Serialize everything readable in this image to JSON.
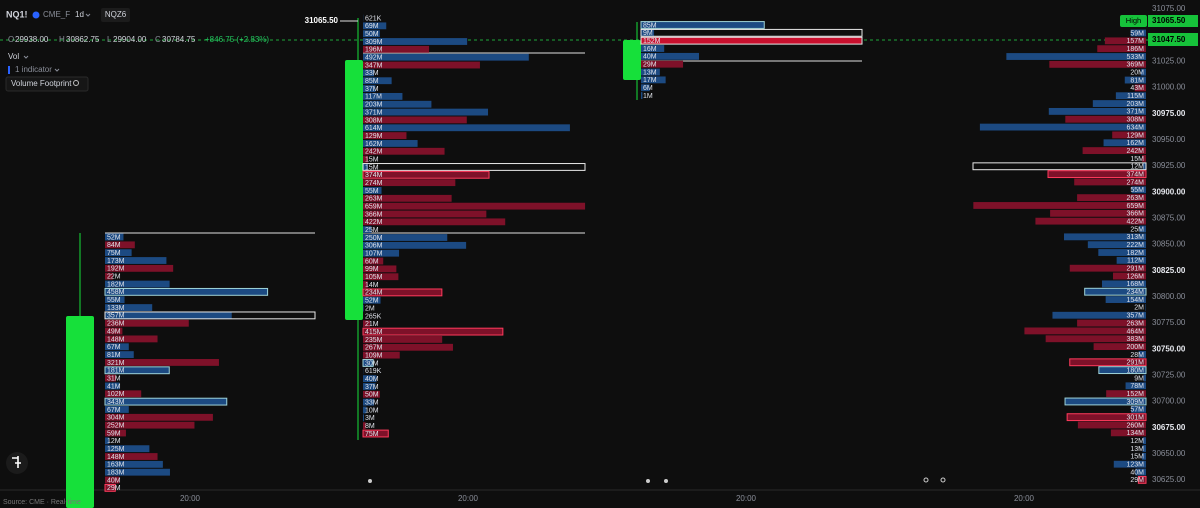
{
  "header": {
    "symbol": "NQ1!",
    "exchange": "CME_F",
    "interval": "1d",
    "contract": "NQZ6"
  },
  "ohlc": {
    "o": "O",
    "open": "29938.00",
    "h": "H",
    "high": "30862.75",
    "l": "L",
    "low": "29904.00",
    "c": "C",
    "close": "30784.75",
    "change": "+846.75 (+2.83%)"
  },
  "indicators": {
    "vol": "Vol",
    "count": "1 indicator",
    "footprint": "Volume Footprint"
  },
  "source": "Source: CME · Real-time",
  "high_marker": "31065.50",
  "time_axis": [
    "20:00",
    "20:00",
    "20:00",
    "20:00"
  ],
  "price_axis": {
    "ylim": [
      30615.5,
      31083.6
    ],
    "ticks": [
      {
        "value": 31075,
        "label": "31075.00"
      },
      {
        "value": 31025,
        "label": "31025.00"
      },
      {
        "value": 31000,
        "label": "31000.00"
      },
      {
        "value": 30975,
        "label": "30975.00",
        "strong": true
      },
      {
        "value": 30950,
        "label": "30950.00"
      },
      {
        "value": 30925,
        "label": "30925.00"
      },
      {
        "value": 30900,
        "label": "30900.00",
        "strong": true
      },
      {
        "value": 30875,
        "label": "30875.00"
      },
      {
        "value": 30850,
        "label": "30850.00"
      },
      {
        "value": 30825,
        "label": "30825.00",
        "strong": true
      },
      {
        "value": 30800,
        "label": "30800.00"
      },
      {
        "value": 30775,
        "label": "30775.00"
      },
      {
        "value": 30750,
        "label": "30750.00",
        "strong": true
      },
      {
        "value": 30725,
        "label": "30725.00"
      },
      {
        "value": 30700,
        "label": "30700.00"
      },
      {
        "value": 30675,
        "label": "30675.00",
        "strong": true
      },
      {
        "value": 30650,
        "label": "30650.00"
      },
      {
        "value": 30625,
        "label": "30625.00"
      }
    ],
    "high_tag": "High",
    "high_price": "31065.50",
    "last_price": "31047.50"
  },
  "colors": {
    "b": "#1c4a82",
    "s": "#7e1129",
    "box_b": "#9fd3d8",
    "box_s": "#ff3b5c",
    "full": "#e8e8e8",
    "hot": "#c8102e"
  },
  "footprints": [
    {
      "rows": [
        {
          "t": "52M",
          "v": 52,
          "s": "b"
        },
        {
          "t": "84M",
          "v": 84,
          "s": "s"
        },
        {
          "t": "75M",
          "v": 75,
          "s": "b"
        },
        {
          "t": "173M",
          "v": 173,
          "s": "b"
        },
        {
          "t": "192M",
          "v": 192,
          "s": "s"
        },
        {
          "t": "22M",
          "v": 22,
          "s": "s"
        },
        {
          "t": "182M",
          "v": 182,
          "s": "b"
        },
        {
          "t": "458M",
          "v": 458,
          "s": "b",
          "box": "bar"
        },
        {
          "t": "55M",
          "v": 55,
          "s": "b"
        },
        {
          "t": "133M",
          "v": 133,
          "s": "b"
        },
        {
          "t": "357M",
          "v": 357,
          "s": "b",
          "box": "full"
        },
        {
          "t": "236M",
          "v": 236,
          "s": "s"
        },
        {
          "t": "49M",
          "v": 49,
          "s": "s"
        },
        {
          "t": "148M",
          "v": 148,
          "s": "s"
        },
        {
          "t": "67M",
          "v": 67,
          "s": "b"
        },
        {
          "t": "81M",
          "v": 81,
          "s": "b"
        },
        {
          "t": "321M",
          "v": 321,
          "s": "s"
        },
        {
          "t": "181M",
          "v": 181,
          "s": "b",
          "box": "bar"
        },
        {
          "t": "31M",
          "v": 31,
          "s": "s"
        },
        {
          "t": "41M",
          "v": 41,
          "s": "b"
        },
        {
          "t": "102M",
          "v": 102,
          "s": "s"
        },
        {
          "t": "343M",
          "v": 343,
          "s": "b",
          "box": "bar"
        },
        {
          "t": "67M",
          "v": 67,
          "s": "b"
        },
        {
          "t": "304M",
          "v": 304,
          "s": "s"
        },
        {
          "t": "252M",
          "v": 252,
          "s": "s"
        },
        {
          "t": "59M",
          "v": 59,
          "s": "s"
        },
        {
          "t": "12M",
          "v": 12,
          "s": "b"
        },
        {
          "t": "125M",
          "v": 125,
          "s": "b"
        },
        {
          "t": "148M",
          "v": 148,
          "s": "s"
        },
        {
          "t": "163M",
          "v": 163,
          "s": "b"
        },
        {
          "t": "183M",
          "v": 183,
          "s": "b"
        },
        {
          "t": "40M",
          "v": 40,
          "s": "s"
        },
        {
          "t": "29M",
          "v": 29,
          "s": "s",
          "box": "bar"
        }
      ]
    },
    {
      "rows": [
        {
          "t": "621K",
          "v": 0.621,
          "s": "b"
        },
        {
          "t": "69M",
          "v": 69,
          "s": "b"
        },
        {
          "t": "50M",
          "v": 50,
          "s": "b"
        },
        {
          "t": "309M",
          "v": 309,
          "s": "b"
        },
        {
          "t": "196M",
          "v": 196,
          "s": "s"
        },
        {
          "t": "492M",
          "v": 492,
          "s": "b"
        },
        {
          "t": "347M",
          "v": 347,
          "s": "s"
        },
        {
          "t": "33M",
          "v": 33,
          "s": "b"
        },
        {
          "t": "85M",
          "v": 85,
          "s": "b"
        },
        {
          "t": "37M",
          "v": 37,
          "s": "b"
        },
        {
          "t": "117M",
          "v": 117,
          "s": "b"
        },
        {
          "t": "203M",
          "v": 203,
          "s": "b"
        },
        {
          "t": "371M",
          "v": 371,
          "s": "b"
        },
        {
          "t": "308M",
          "v": 308,
          "s": "s"
        },
        {
          "t": "614M",
          "v": 614,
          "s": "b"
        },
        {
          "t": "129M",
          "v": 129,
          "s": "s"
        },
        {
          "t": "162M",
          "v": 162,
          "s": "b"
        },
        {
          "t": "242M",
          "v": 242,
          "s": "s"
        },
        {
          "t": "15M",
          "v": 15,
          "s": "s"
        },
        {
          "t": "15M",
          "v": 15,
          "s": "b",
          "box": "full"
        },
        {
          "t": "374M",
          "v": 374,
          "s": "s",
          "box": "bar"
        },
        {
          "t": "274M",
          "v": 274,
          "s": "s"
        },
        {
          "t": "55M",
          "v": 55,
          "s": "b"
        },
        {
          "t": "263M",
          "v": 263,
          "s": "s"
        },
        {
          "t": "659M",
          "v": 659,
          "s": "s"
        },
        {
          "t": "366M",
          "v": 366,
          "s": "s"
        },
        {
          "t": "422M",
          "v": 422,
          "s": "s"
        },
        {
          "t": "25M",
          "v": 25,
          "s": "b"
        },
        {
          "t": "250M",
          "v": 250,
          "s": "b"
        },
        {
          "t": "306M",
          "v": 306,
          "s": "b"
        },
        {
          "t": "107M",
          "v": 107,
          "s": "b"
        },
        {
          "t": "60M",
          "v": 60,
          "s": "s"
        },
        {
          "t": "99M",
          "v": 99,
          "s": "s"
        },
        {
          "t": "105M",
          "v": 105,
          "s": "s"
        },
        {
          "t": "14M",
          "v": 14,
          "s": "s"
        },
        {
          "t": "234M",
          "v": 234,
          "s": "s",
          "box": "bar"
        },
        {
          "t": "52M",
          "v": 52,
          "s": "b"
        },
        {
          "t": "2M",
          "v": 2,
          "s": "b"
        },
        {
          "t": "265K",
          "v": 0.265,
          "s": "s"
        },
        {
          "t": "21M",
          "v": 21,
          "s": "s"
        },
        {
          "t": "415M",
          "v": 415,
          "s": "s",
          "box": "bar"
        },
        {
          "t": "235M",
          "v": 235,
          "s": "s"
        },
        {
          "t": "267M",
          "v": 267,
          "s": "s"
        },
        {
          "t": "109M",
          "v": 109,
          "s": "s"
        },
        {
          "t": "30M",
          "v": 30,
          "s": "b",
          "box": "bar"
        },
        {
          "t": "619K",
          "v": 0.619,
          "s": "b"
        },
        {
          "t": "40M",
          "v": 40,
          "s": "b"
        },
        {
          "t": "37M",
          "v": 37,
          "s": "b"
        },
        {
          "t": "50M",
          "v": 50,
          "s": "s"
        },
        {
          "t": "33M",
          "v": 33,
          "s": "b"
        },
        {
          "t": "10M",
          "v": 10,
          "s": "b"
        },
        {
          "t": "3M",
          "v": 3,
          "s": "b"
        },
        {
          "t": "8M",
          "v": 8,
          "s": "s"
        },
        {
          "t": "75M",
          "v": 75,
          "s": "s",
          "box": "bar"
        }
      ]
    },
    {
      "rows": [
        {
          "t": "85M",
          "v": 85,
          "s": "b",
          "box": "bar"
        },
        {
          "t": "9M",
          "v": 9,
          "s": "b",
          "box": "full"
        },
        {
          "t": "152M",
          "v": 152,
          "s": "s",
          "box": "full",
          "hot": true
        },
        {
          "t": "16M",
          "v": 16,
          "s": "b"
        },
        {
          "t": "40M",
          "v": 40,
          "s": "b"
        },
        {
          "t": "29M",
          "v": 29,
          "s": "s"
        },
        {
          "t": "13M",
          "v": 13,
          "s": "b"
        },
        {
          "t": "17M",
          "v": 17,
          "s": "b"
        },
        {
          "t": "6M",
          "v": 6,
          "s": "b"
        },
        {
          "t": "1M",
          "v": 1,
          "s": "b"
        }
      ]
    },
    {
      "rows": [
        {
          "t": "59M",
          "v": 59,
          "s": "b"
        },
        {
          "t": "157M",
          "v": 157,
          "s": "s"
        },
        {
          "t": "186M",
          "v": 186,
          "s": "s"
        },
        {
          "t": "533M",
          "v": 533,
          "s": "b"
        },
        {
          "t": "369M",
          "v": 369,
          "s": "s"
        },
        {
          "t": "20M",
          "v": 20,
          "s": "b"
        },
        {
          "t": "81M",
          "v": 81,
          "s": "b"
        },
        {
          "t": "43M",
          "v": 43,
          "s": "s"
        },
        {
          "t": "115M",
          "v": 115,
          "s": "b"
        },
        {
          "t": "203M",
          "v": 203,
          "s": "b"
        },
        {
          "t": "371M",
          "v": 371,
          "s": "b"
        },
        {
          "t": "308M",
          "v": 308,
          "s": "s"
        },
        {
          "t": "634M",
          "v": 634,
          "s": "b"
        },
        {
          "t": "129M",
          "v": 129,
          "s": "s"
        },
        {
          "t": "162M",
          "v": 162,
          "s": "b"
        },
        {
          "t": "242M",
          "v": 242,
          "s": "s"
        },
        {
          "t": "15M",
          "v": 15,
          "s": "s"
        },
        {
          "t": "12M",
          "v": 12,
          "s": "b",
          "box": "full"
        },
        {
          "t": "374M",
          "v": 374,
          "s": "s",
          "box": "bar"
        },
        {
          "t": "274M",
          "v": 274,
          "s": "s"
        },
        {
          "t": "55M",
          "v": 55,
          "s": "b"
        },
        {
          "t": "263M",
          "v": 263,
          "s": "s"
        },
        {
          "t": "659M",
          "v": 659,
          "s": "s"
        },
        {
          "t": "366M",
          "v": 366,
          "s": "s"
        },
        {
          "t": "422M",
          "v": 422,
          "s": "s"
        },
        {
          "t": "25M",
          "v": 25,
          "s": "b"
        },
        {
          "t": "313M",
          "v": 313,
          "s": "b"
        },
        {
          "t": "222M",
          "v": 222,
          "s": "b"
        },
        {
          "t": "182M",
          "v": 182,
          "s": "b"
        },
        {
          "t": "112M",
          "v": 112,
          "s": "b"
        },
        {
          "t": "291M",
          "v": 291,
          "s": "s"
        },
        {
          "t": "126M",
          "v": 126,
          "s": "s"
        },
        {
          "t": "168M",
          "v": 168,
          "s": "b"
        },
        {
          "t": "234M",
          "v": 234,
          "s": "b",
          "box": "bar"
        },
        {
          "t": "154M",
          "v": 154,
          "s": "b"
        },
        {
          "t": "2M",
          "v": 2,
          "s": "b"
        },
        {
          "t": "357M",
          "v": 357,
          "s": "b"
        },
        {
          "t": "263M",
          "v": 263,
          "s": "s"
        },
        {
          "t": "464M",
          "v": 464,
          "s": "s"
        },
        {
          "t": "383M",
          "v": 383,
          "s": "s"
        },
        {
          "t": "200M",
          "v": 200,
          "s": "s"
        },
        {
          "t": "28M",
          "v": 28,
          "s": "b"
        },
        {
          "t": "291M",
          "v": 291,
          "s": "s",
          "box": "bar"
        },
        {
          "t": "180M",
          "v": 180,
          "s": "b",
          "box": "bar"
        },
        {
          "t": "9M",
          "v": 9,
          "s": "b"
        },
        {
          "t": "78M",
          "v": 78,
          "s": "b"
        },
        {
          "t": "152M",
          "v": 152,
          "s": "s"
        },
        {
          "t": "309M",
          "v": 309,
          "s": "b",
          "box": "bar"
        },
        {
          "t": "57M",
          "v": 57,
          "s": "b"
        },
        {
          "t": "301M",
          "v": 301,
          "s": "s",
          "box": "bar"
        },
        {
          "t": "260M",
          "v": 260,
          "s": "s"
        },
        {
          "t": "134M",
          "v": 134,
          "s": "s"
        },
        {
          "t": "12M",
          "v": 12,
          "s": "b"
        },
        {
          "t": "13M",
          "v": 13,
          "s": "b"
        },
        {
          "t": "15M",
          "v": 15,
          "s": "b"
        },
        {
          "t": "123M",
          "v": 123,
          "s": "b"
        },
        {
          "t": "40M",
          "v": 40,
          "s": "b"
        },
        {
          "t": "29M",
          "v": 29,
          "s": "s",
          "box": "bar"
        }
      ]
    }
  ]
}
